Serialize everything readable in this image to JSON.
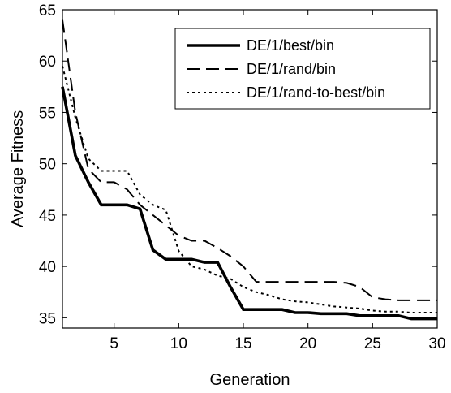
{
  "chart_data": {
    "type": "line",
    "xlabel": "Generation",
    "ylabel": "Average Fitness",
    "xlim": [
      1,
      30
    ],
    "ylim": [
      34,
      65
    ],
    "xticks": [
      5,
      10,
      15,
      20,
      25,
      30
    ],
    "yticks": [
      35,
      40,
      45,
      50,
      55,
      60,
      65
    ],
    "grid": false,
    "legend_position": "top-right",
    "series": [
      {
        "name": "DE/1/best/bin",
        "style": "solid",
        "x": [
          1,
          2,
          3,
          4,
          5,
          6,
          7,
          8,
          9,
          10,
          11,
          12,
          13,
          14,
          15,
          16,
          17,
          18,
          19,
          20,
          21,
          22,
          23,
          24,
          25,
          26,
          27,
          28,
          29,
          30
        ],
        "y": [
          57.5,
          50.8,
          48.2,
          46.0,
          46.0,
          46.0,
          45.6,
          41.6,
          40.7,
          40.7,
          40.7,
          40.4,
          40.4,
          38.0,
          35.8,
          35.8,
          35.8,
          35.8,
          35.5,
          35.5,
          35.4,
          35.4,
          35.4,
          35.2,
          35.2,
          35.2,
          35.2,
          34.9,
          34.9,
          34.9
        ]
      },
      {
        "name": "DE/1/rand/bin",
        "style": "dashed",
        "x": [
          1,
          2,
          3,
          4,
          5,
          6,
          7,
          8,
          9,
          10,
          11,
          12,
          13,
          14,
          15,
          16,
          17,
          18,
          19,
          20,
          21,
          22,
          23,
          24,
          25,
          26,
          27,
          28,
          29,
          30
        ],
        "y": [
          64.0,
          55.0,
          49.5,
          48.2,
          48.2,
          47.5,
          46.0,
          45.0,
          44.0,
          43.0,
          42.5,
          42.5,
          41.8,
          41.0,
          40.0,
          38.5,
          38.5,
          38.5,
          38.5,
          38.5,
          38.5,
          38.5,
          38.4,
          38.0,
          37.0,
          36.8,
          36.7,
          36.7,
          36.7,
          36.7
        ]
      },
      {
        "name": "DE/1/rand-to-best/bin",
        "style": "dotted",
        "x": [
          1,
          2,
          3,
          4,
          5,
          6,
          7,
          8,
          9,
          10,
          11,
          12,
          13,
          14,
          15,
          16,
          17,
          18,
          19,
          20,
          21,
          22,
          23,
          24,
          25,
          26,
          27,
          28,
          29,
          30
        ],
        "y": [
          59.5,
          54.5,
          50.5,
          49.3,
          49.3,
          49.3,
          47.0,
          46.0,
          45.5,
          41.5,
          40.0,
          39.7,
          39.1,
          38.8,
          38.0,
          37.5,
          37.2,
          36.8,
          36.6,
          36.5,
          36.3,
          36.1,
          36.0,
          35.9,
          35.7,
          35.6,
          35.6,
          35.5,
          35.5,
          35.5
        ]
      }
    ]
  }
}
